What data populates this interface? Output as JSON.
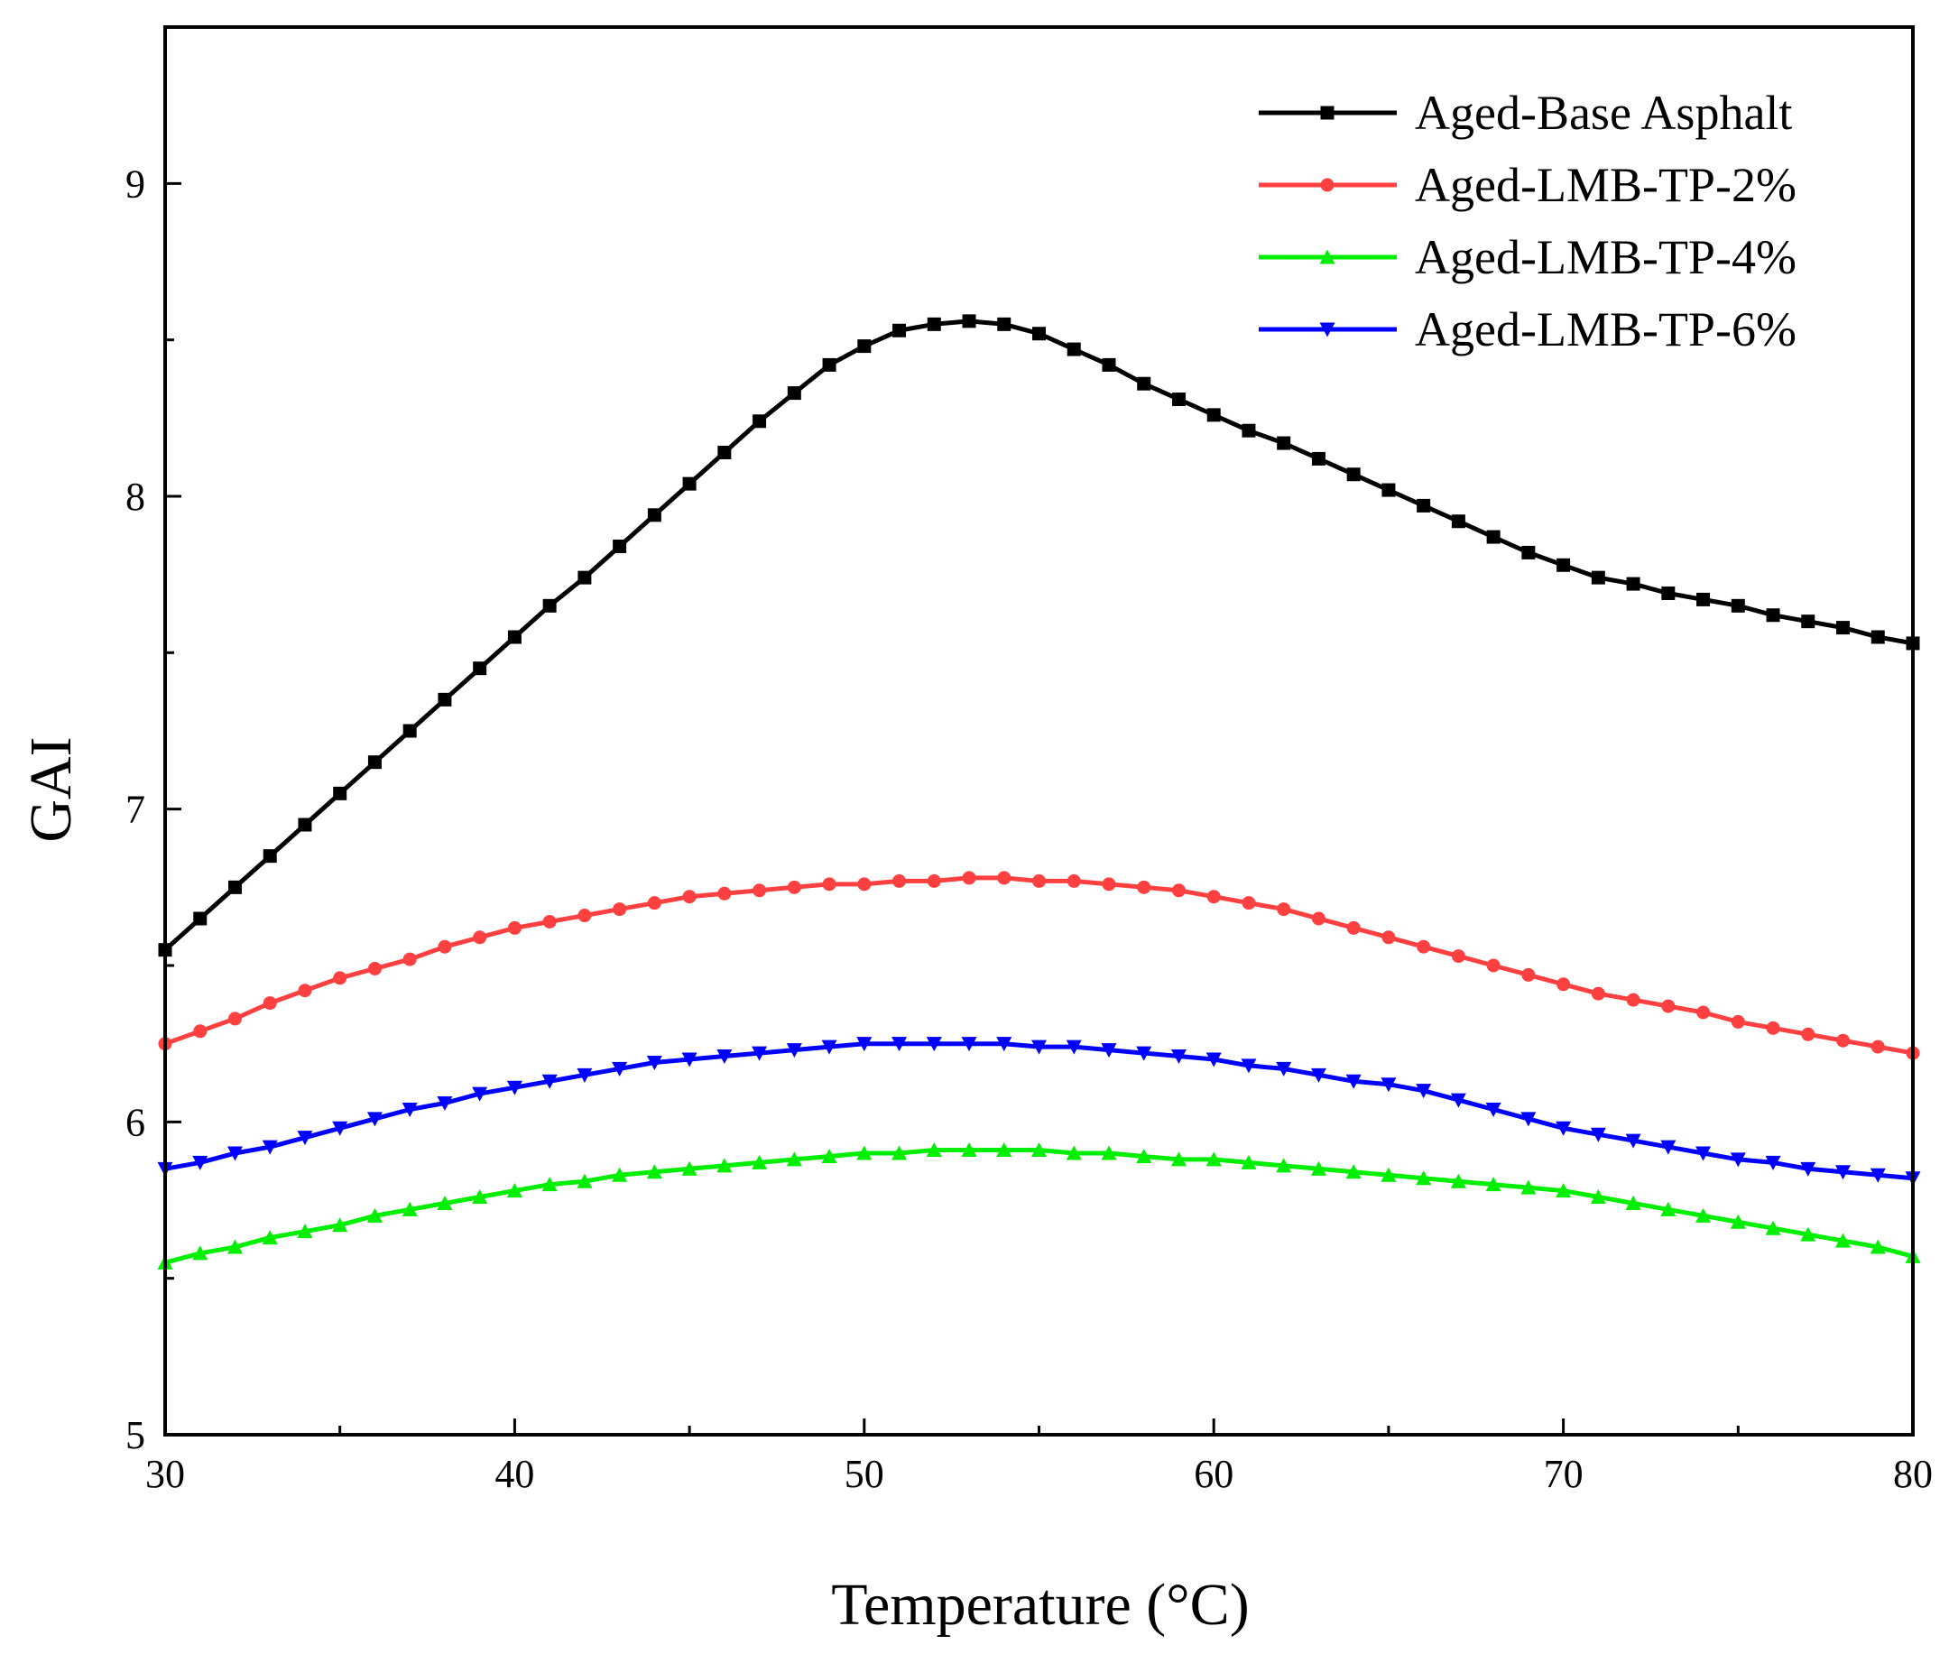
{
  "chart_data": {
    "type": "line",
    "title": "",
    "xlabel": "Temperature (°C)",
    "ylabel": "GAI",
    "xlim": [
      30,
      80
    ],
    "ylim": [
      5,
      9.5
    ],
    "x_ticks": [
      30,
      40,
      50,
      60,
      70,
      80
    ],
    "y_ticks": [
      5,
      6,
      7,
      8,
      9
    ],
    "grid": false,
    "legend_position": "top-right",
    "x": [
      30,
      31,
      32,
      33,
      34,
      35,
      36,
      37,
      38,
      39,
      40,
      41,
      42,
      43,
      44,
      45,
      46,
      47,
      48,
      49,
      50,
      51,
      52,
      53,
      54,
      55,
      56,
      57,
      58,
      59,
      60,
      61,
      62,
      63,
      64,
      65,
      66,
      67,
      68,
      69,
      70,
      71,
      72,
      73,
      74,
      75,
      76,
      77,
      78,
      79,
      80
    ],
    "series": [
      {
        "name": "Aged-Base Asphalt",
        "color": "#000000",
        "marker": "square",
        "values": [
          6.55,
          6.65,
          6.75,
          6.85,
          6.95,
          7.05,
          7.15,
          7.25,
          7.35,
          7.45,
          7.55,
          7.65,
          7.74,
          7.84,
          7.94,
          8.04,
          8.14,
          8.24,
          8.33,
          8.42,
          8.48,
          8.53,
          8.55,
          8.56,
          8.55,
          8.52,
          8.47,
          8.42,
          8.36,
          8.31,
          8.26,
          8.21,
          8.17,
          8.12,
          8.07,
          8.02,
          7.97,
          7.92,
          7.87,
          7.82,
          7.78,
          7.74,
          7.72,
          7.69,
          7.67,
          7.65,
          7.62,
          7.6,
          7.58,
          7.55,
          7.53
        ]
      },
      {
        "name": "Aged-LMB-TP-2%",
        "color": "#ff4040",
        "marker": "circle",
        "values": [
          6.25,
          6.29,
          6.33,
          6.38,
          6.42,
          6.46,
          6.49,
          6.52,
          6.56,
          6.59,
          6.62,
          6.64,
          6.66,
          6.68,
          6.7,
          6.72,
          6.73,
          6.74,
          6.75,
          6.76,
          6.76,
          6.77,
          6.77,
          6.78,
          6.78,
          6.77,
          6.77,
          6.76,
          6.75,
          6.74,
          6.72,
          6.7,
          6.68,
          6.65,
          6.62,
          6.59,
          6.56,
          6.53,
          6.5,
          6.47,
          6.44,
          6.41,
          6.39,
          6.37,
          6.35,
          6.32,
          6.3,
          6.28,
          6.26,
          6.24,
          6.22
        ]
      },
      {
        "name": "Aged-LMB-TP-4%",
        "color": "#00ee00",
        "marker": "triangle-up",
        "values": [
          5.55,
          5.58,
          5.6,
          5.63,
          5.65,
          5.67,
          5.7,
          5.72,
          5.74,
          5.76,
          5.78,
          5.8,
          5.81,
          5.83,
          5.84,
          5.85,
          5.86,
          5.87,
          5.88,
          5.89,
          5.9,
          5.9,
          5.91,
          5.91,
          5.91,
          5.91,
          5.9,
          5.9,
          5.89,
          5.88,
          5.88,
          5.87,
          5.86,
          5.85,
          5.84,
          5.83,
          5.82,
          5.81,
          5.8,
          5.79,
          5.78,
          5.76,
          5.74,
          5.72,
          5.7,
          5.68,
          5.66,
          5.64,
          5.62,
          5.6,
          5.57
        ]
      },
      {
        "name": "Aged-LMB-TP-6%",
        "color": "#0000ff",
        "marker": "triangle-down",
        "values": [
          5.85,
          5.87,
          5.9,
          5.92,
          5.95,
          5.98,
          6.01,
          6.04,
          6.06,
          6.09,
          6.11,
          6.13,
          6.15,
          6.17,
          6.19,
          6.2,
          6.21,
          6.22,
          6.23,
          6.24,
          6.25,
          6.25,
          6.25,
          6.25,
          6.25,
          6.24,
          6.24,
          6.23,
          6.22,
          6.21,
          6.2,
          6.18,
          6.17,
          6.15,
          6.13,
          6.12,
          6.1,
          6.07,
          6.04,
          6.01,
          5.98,
          5.96,
          5.94,
          5.92,
          5.9,
          5.88,
          5.87,
          5.85,
          5.84,
          5.83,
          5.82
        ]
      }
    ]
  }
}
